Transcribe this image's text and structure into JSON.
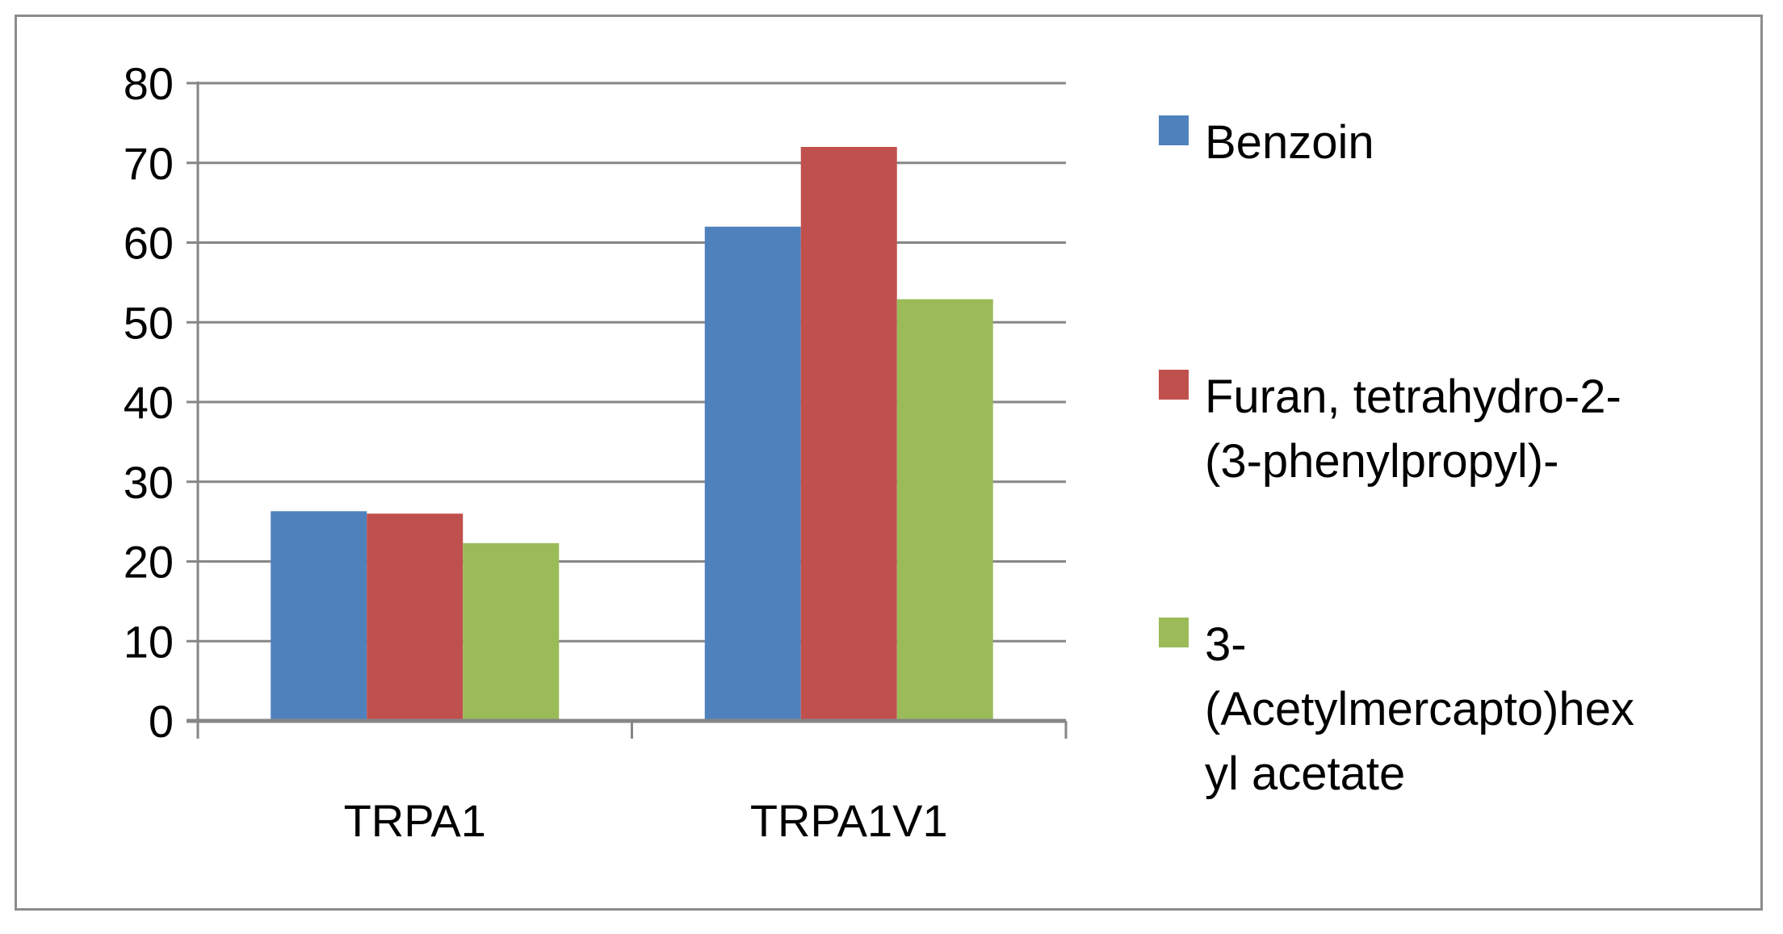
{
  "chart_data": {
    "type": "bar",
    "title": "",
    "xlabel": "",
    "ylabel": "",
    "categories": [
      "TRPA1",
      "TRPA1V1"
    ],
    "ylim": [
      0,
      80
    ],
    "yticks": [
      0,
      10,
      20,
      30,
      40,
      50,
      60,
      70,
      80
    ],
    "grid": true,
    "legend_position": "right",
    "series": [
      {
        "name": "Benzoin",
        "legend_lines": [
          "Benzoin"
        ],
        "color": "#4f81bd",
        "values": [
          26.3,
          62
        ]
      },
      {
        "name": "Furan, tetrahydro-2-(3-phenylpropyl)-",
        "legend_lines": [
          "Furan, tetrahydro-2-",
          "(3-phenylpropyl)-"
        ],
        "color": "#c0504d",
        "values": [
          26,
          72
        ]
      },
      {
        "name": "3-(Acetylmercapto)hexyl acetate",
        "legend_lines": [
          "3-",
          "(Acetylmercapto)hex",
          "yl acetate"
        ],
        "color": "#9bbb59",
        "values": [
          22.3,
          52.9
        ]
      }
    ]
  }
}
